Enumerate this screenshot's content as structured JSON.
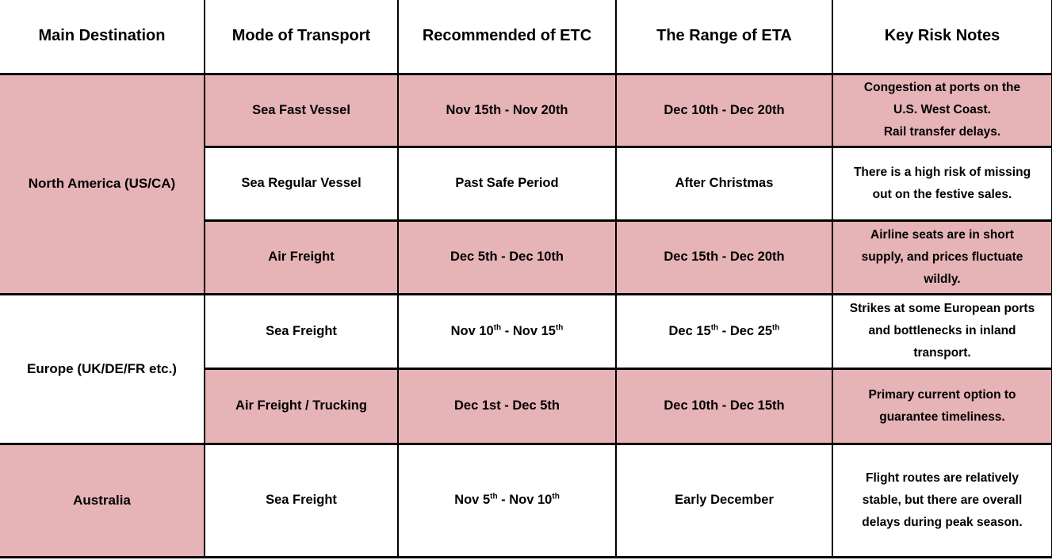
{
  "colors": {
    "row_pink": "#e6b3b6",
    "row_white": "#ffffff",
    "border": "#000000",
    "text": "#000000"
  },
  "table": {
    "header": {
      "columns": [
        "Main Destination",
        "Mode of Transport",
        "Recommended of ETC",
        "The Range of ETA",
        "Key Risk Notes"
      ]
    },
    "groups": [
      {
        "destination": "North America (US/CA)",
        "rows": [
          {
            "mode": "Sea Fast Vessel",
            "etc": "Nov 15th - Nov 20th",
            "eta": "Dec 10th - Dec 20th",
            "notes": "Congestion at ports on the\nU.S. West Coast.\nRail transfer delays."
          },
          {
            "mode": "Sea Regular Vessel",
            "etc": "Past Safe Period",
            "eta": "After Christmas",
            "notes": "There is a high risk of missing\nout on the festive sales."
          },
          {
            "mode": "Air Freight",
            "etc": "Dec 5th - Dec 10th",
            "eta": "Dec 15th - Dec 20th",
            "notes": "Airline seats are in short\nsupply, and prices fluctuate\nwildly."
          }
        ]
      },
      {
        "destination": "Europe (UK/DE/FR etc.)",
        "rows": [
          {
            "mode": "Sea Freight",
            "etc": "Nov 10^th^ - Nov 15^th^",
            "eta": "Dec 15^th^ - Dec 25^th^",
            "notes": "Strikes at some European ports\nand bottlenecks in inland\ntransport."
          },
          {
            "mode": "Air Freight / Trucking",
            "etc": "Dec 1st - Dec 5th",
            "eta": "Dec 10th - Dec 15th",
            "notes": "Primary current option to\nguarantee timeliness."
          }
        ]
      },
      {
        "destination": "Australia",
        "rows": [
          {
            "mode": "Sea Freight",
            "etc": "Nov 5^th^ - Nov 10^th^",
            "eta": "Early December",
            "notes": "Flight routes are relatively\nstable, but there are overall\ndelays during peak season."
          }
        ]
      }
    ]
  }
}
